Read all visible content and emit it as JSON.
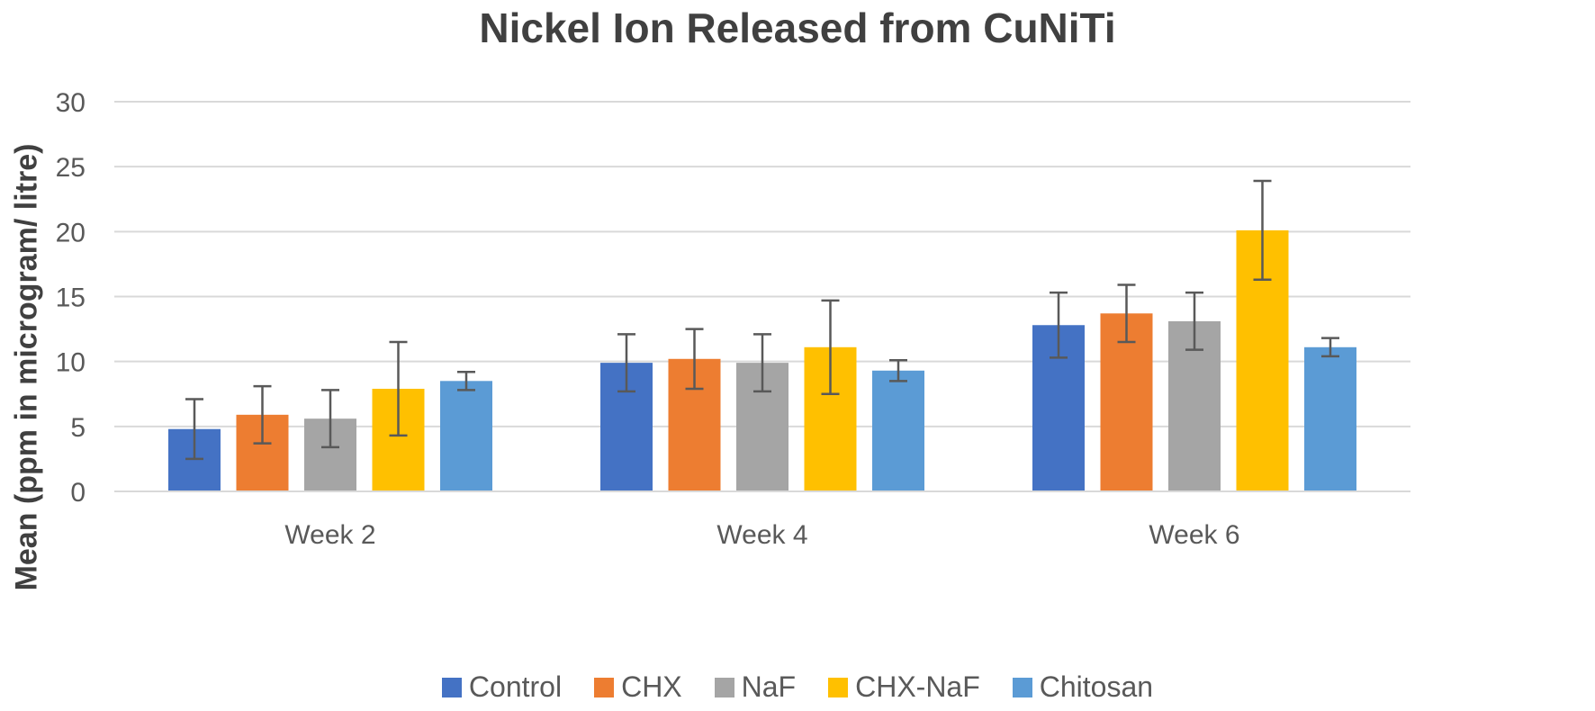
{
  "chart_data": {
    "type": "bar",
    "title": "Nickel Ion Released from CuNiTi",
    "ylabel": "Mean (ppm in microgram/ litre)",
    "xlabel": "",
    "ylim": [
      0,
      30
    ],
    "yticks": [
      0,
      5,
      10,
      15,
      20,
      25,
      30
    ],
    "grid": true,
    "legend_position": "bottom",
    "categories": [
      "Week 2",
      "Week 4",
      "Week 6"
    ],
    "series": [
      {
        "name": "Control",
        "color": "#4472C4",
        "values": [
          4.8,
          9.9,
          12.8
        ],
        "errors": [
          2.3,
          2.2,
          2.5
        ]
      },
      {
        "name": "CHX",
        "color": "#ED7D31",
        "values": [
          5.9,
          10.2,
          13.7
        ],
        "errors": [
          2.2,
          2.3,
          2.2
        ]
      },
      {
        "name": "NaF",
        "color": "#A5A5A5",
        "values": [
          5.6,
          9.9,
          13.1
        ],
        "errors": [
          2.2,
          2.2,
          2.2
        ]
      },
      {
        "name": "CHX-NaF",
        "color": "#FFC000",
        "values": [
          7.9,
          11.1,
          20.1
        ],
        "errors": [
          3.6,
          3.6,
          3.8
        ]
      },
      {
        "name": "Chitosan",
        "color": "#5B9BD5",
        "values": [
          8.5,
          9.3,
          11.1
        ],
        "errors": [
          0.7,
          0.8,
          0.7
        ]
      }
    ]
  }
}
